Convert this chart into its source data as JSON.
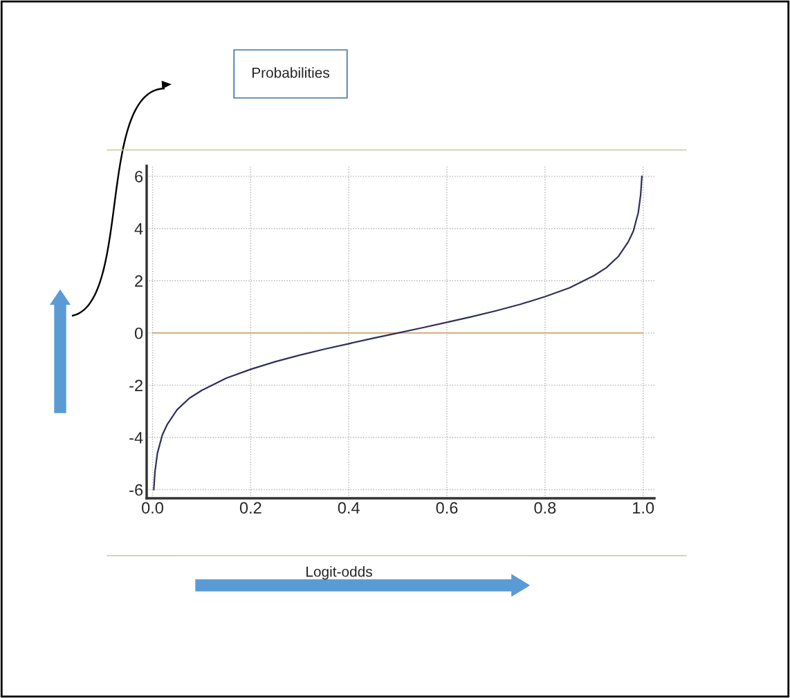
{
  "chart_data": {
    "type": "line",
    "x": [
      0.0025,
      0.005,
      0.01,
      0.02,
      0.03,
      0.05,
      0.075,
      0.1,
      0.15,
      0.2,
      0.25,
      0.3,
      0.35,
      0.4,
      0.45,
      0.5,
      0.55,
      0.6,
      0.65,
      0.7,
      0.75,
      0.8,
      0.85,
      0.9,
      0.925,
      0.95,
      0.97,
      0.98,
      0.99,
      0.995,
      0.9975
    ],
    "series": [
      {
        "color": "#2f2f5a",
        "values": [
          -6,
          -5.3,
          -4.6,
          -3.9,
          -3.5,
          -2.94,
          -2.5,
          -2.2,
          -1.73,
          -1.39,
          -1.1,
          -0.85,
          -0.62,
          -0.41,
          -0.2,
          0,
          0.2,
          0.41,
          0.62,
          0.85,
          1.1,
          1.39,
          1.73,
          2.2,
          2.5,
          2.94,
          3.5,
          3.9,
          4.6,
          5.3,
          6
        ]
      }
    ],
    "xlim": [
      -0.012,
      1.023
    ],
    "ylim": [
      -6.33,
      6.4
    ],
    "xticks": [
      {
        "value": 0,
        "label": "0.0"
      },
      0.2,
      0.4,
      0.6,
      0.8,
      {
        "value": 1,
        "label": "1.0"
      }
    ],
    "yticks": [
      -6,
      -4,
      -2,
      0,
      2,
      4,
      6
    ],
    "grid": true,
    "line_style": "solid",
    "marker": "none",
    "ref_lines": [
      {
        "axis": "y",
        "value": 0,
        "color": "#d9a97a"
      }
    ],
    "annotations": [
      "Probabilities",
      "Logit-odds"
    ]
  }
}
